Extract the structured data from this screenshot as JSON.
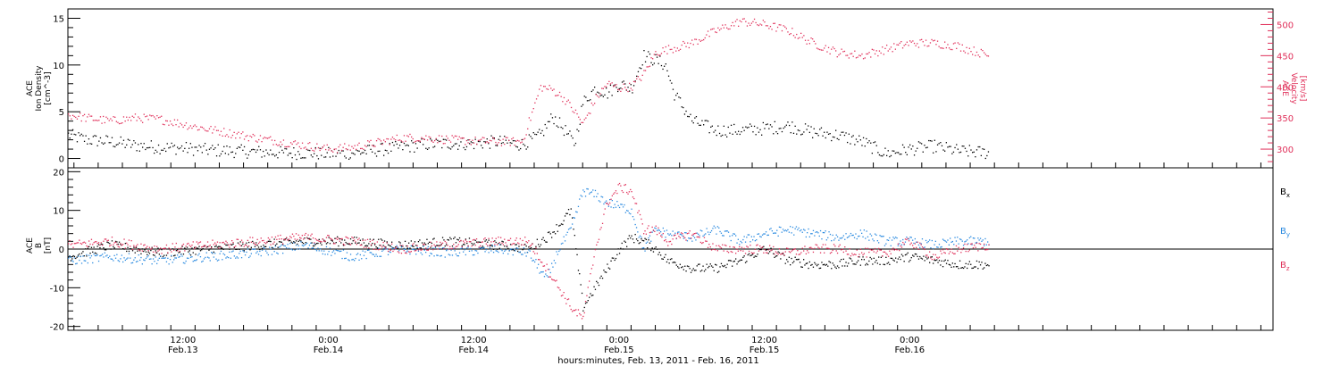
{
  "colors": {
    "black": "#000000",
    "pink": "#e0305a",
    "blue": "#2a8ae0"
  },
  "xaxis": {
    "label": "hours:minutes, Feb. 13, 2011 - Feb. 16, 2011",
    "range_hours": [
      2.5,
      102
    ],
    "ticks": [
      {
        "hour": 12,
        "time": "12:00",
        "date": "Feb.13"
      },
      {
        "hour": 24,
        "time": "0:00",
        "date": "Feb.14"
      },
      {
        "hour": 36,
        "time": "12:00",
        "date": "Feb.14"
      },
      {
        "hour": 48,
        "time": "0:00",
        "date": "Feb.15"
      },
      {
        "hour": 60,
        "time": "12:00",
        "date": "Feb.15"
      },
      {
        "hour": 72,
        "time": "0:00",
        "date": "Feb.16"
      }
    ]
  },
  "chart_data": [
    {
      "type": "scatter",
      "panel": "top",
      "ylabel_left": [
        "ACE",
        "Ion Density",
        "[cm^-3]"
      ],
      "ylabel_right": [
        "ACE",
        "Velocity",
        "[km/s]"
      ],
      "ylim_left": [
        -1,
        16
      ],
      "yticks_left": [
        0,
        5,
        10,
        15
      ],
      "ylim_right": [
        270,
        525
      ],
      "yticks_right": [
        300,
        350,
        400,
        450,
        500
      ],
      "series": [
        {
          "axis": "left",
          "color": "#000000",
          "x": [
            2.5,
            4,
            6,
            8,
            10,
            12,
            14,
            16,
            18,
            20,
            22,
            24,
            26,
            28,
            30,
            32,
            34,
            36,
            38,
            40,
            41.5,
            42.5,
            43.5,
            44.3,
            45,
            46,
            47,
            48,
            49,
            50,
            51,
            51.8,
            52.5,
            53,
            54,
            56,
            58,
            60,
            62,
            64,
            66,
            68,
            70,
            72,
            74,
            76,
            78.5
          ],
          "y": [
            2.5,
            2.0,
            1.8,
            1.4,
            1.2,
            1.1,
            0.9,
            0.8,
            0.7,
            0.6,
            0.6,
            0.5,
            0.6,
            0.9,
            1.2,
            1.5,
            1.6,
            1.6,
            1.8,
            1.5,
            2.5,
            4.5,
            3.0,
            1.5,
            6.0,
            7.5,
            7.0,
            8.0,
            7.5,
            11.0,
            10.5,
            10.0,
            7.0,
            6.0,
            4.0,
            3.0,
            3.0,
            3.2,
            3.5,
            2.8,
            2.5,
            1.8,
            0.5,
            1.0,
            1.3,
            0.8,
            0.6
          ]
        },
        {
          "axis": "right",
          "color": "#e0305a",
          "x": [
            2.5,
            4,
            6,
            8,
            10,
            12,
            14,
            16,
            18,
            20,
            22,
            24,
            26,
            28,
            30,
            32,
            34,
            36,
            38,
            40,
            41.5,
            42.5,
            43.5,
            44.3,
            45,
            46,
            47,
            48,
            49,
            50,
            51,
            52,
            54,
            56,
            58,
            60,
            62,
            64,
            66,
            68,
            70,
            72,
            74,
            76,
            78.5
          ],
          "y": [
            355,
            350,
            345,
            350,
            348,
            340,
            332,
            325,
            318,
            312,
            306,
            300,
            303,
            310,
            318,
            318,
            315,
            313,
            312,
            312,
            400,
            395,
            380,
            360,
            340,
            380,
            405,
            398,
            400,
            420,
            455,
            460,
            470,
            490,
            505,
            500,
            490,
            470,
            455,
            450,
            460,
            470,
            470,
            465,
            450
          ]
        }
      ]
    },
    {
      "type": "line",
      "panel": "bottom",
      "ylabel_left": [
        "ACE",
        "B",
        "[nT]"
      ],
      "ylim": [
        -21,
        21
      ],
      "yticks": [
        -20,
        -10,
        0,
        10,
        20
      ],
      "zero_line": true,
      "series": [
        {
          "name": "B_x",
          "color": "#000000",
          "x": [
            2.5,
            6,
            10,
            14,
            18,
            22,
            26,
            30,
            34,
            38,
            40.5,
            42,
            43,
            44,
            45,
            46,
            47,
            48,
            49,
            50,
            51,
            52,
            54,
            56,
            58,
            60,
            62,
            64,
            66,
            68,
            70,
            72,
            74,
            76,
            78.5
          ],
          "y": [
            -2,
            1,
            -1,
            0,
            1,
            2,
            2,
            1,
            2,
            1,
            0,
            3,
            6,
            10,
            -15,
            -10,
            -5,
            0,
            3,
            2,
            0,
            -3,
            -5,
            -5,
            -3,
            0,
            -3,
            -4,
            -4,
            -3,
            -3,
            -2,
            -3,
            -4,
            -4
          ]
        },
        {
          "name": "B_y",
          "color": "#2a8ae0",
          "x": [
            2.5,
            6,
            10,
            14,
            18,
            22,
            26,
            30,
            34,
            38,
            40.5,
            42,
            43,
            44,
            45,
            46,
            47,
            48,
            49,
            50,
            51,
            52,
            54,
            56,
            58,
            60,
            62,
            64,
            66,
            68,
            70,
            72,
            74,
            76,
            78.5
          ],
          "y": [
            -3,
            -2,
            -3,
            -2,
            -1,
            1,
            -2,
            0,
            -1,
            0,
            -1,
            -8,
            0,
            5,
            15,
            14,
            12,
            11,
            10,
            0,
            5,
            4,
            3,
            5,
            2,
            4,
            5,
            4,
            3,
            4,
            2,
            2,
            1,
            2,
            2
          ]
        },
        {
          "name": "B_z",
          "color": "#e0305a",
          "x": [
            2.5,
            6,
            10,
            14,
            18,
            22,
            26,
            30,
            34,
            38,
            40.5,
            42,
            43,
            44,
            45,
            46,
            47,
            48,
            49,
            50,
            51,
            52,
            54,
            56,
            58,
            60,
            62,
            64,
            66,
            68,
            70,
            72,
            74,
            76,
            78.5
          ],
          "y": [
            1,
            2,
            0,
            1,
            2,
            3,
            2,
            0,
            1,
            2,
            2,
            -5,
            -10,
            -15,
            -18,
            0,
            12,
            16,
            15,
            5,
            5,
            2,
            4,
            0,
            0,
            0,
            -1,
            0,
            0,
            -1,
            -1,
            2,
            -2,
            0,
            1
          ]
        }
      ]
    }
  ],
  "legend": [
    {
      "main": "B",
      "sub": "x",
      "color": "#000000"
    },
    {
      "main": "B",
      "sub": "y",
      "color": "#2a8ae0"
    },
    {
      "main": "B",
      "sub": "z",
      "color": "#e0305a"
    }
  ]
}
